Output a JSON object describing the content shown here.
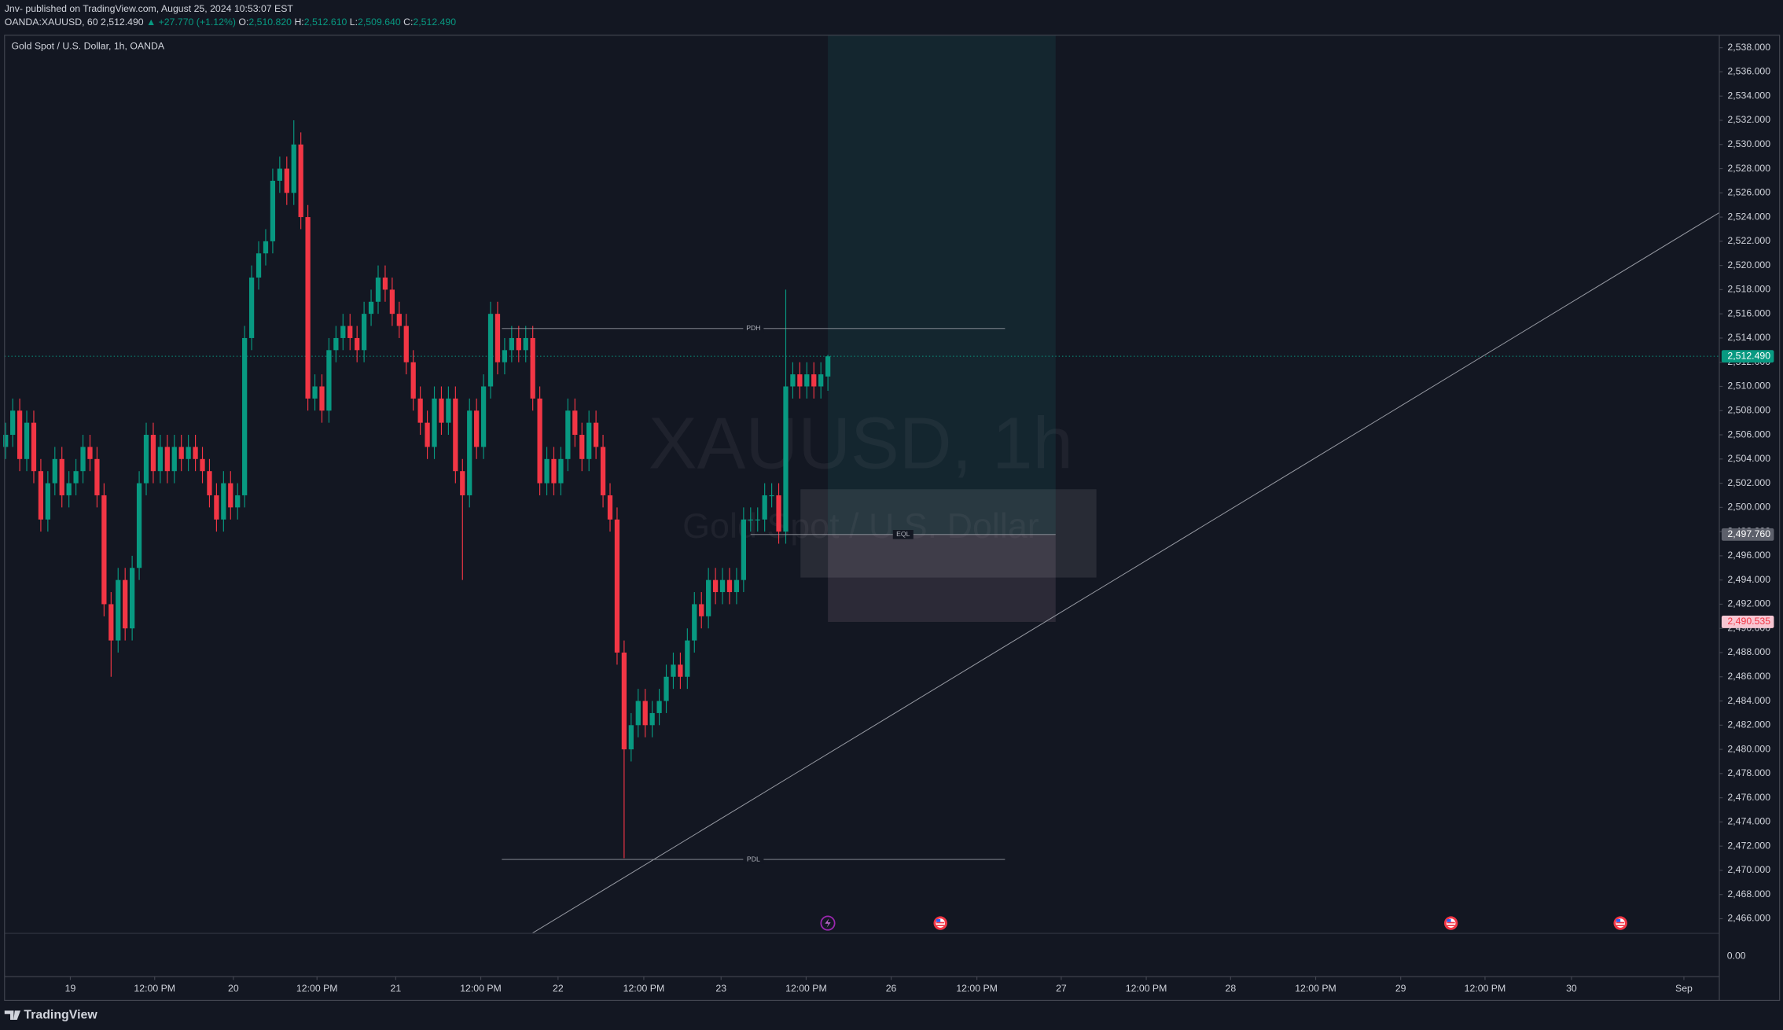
{
  "header": {
    "publisher": "Jnv- published on TradingView.com, August 25, 2024 10:53:07 EST",
    "symbol": "OANDA:XAUUSD, 60",
    "last": "2,512.490",
    "change": "▲ +27.770 (+1.12%)",
    "open_label": "O:",
    "open": "2,510.820",
    "high_label": "H:",
    "high": "2,512.610",
    "low_label": "L:",
    "low": "2,509.640",
    "close_label": "C:",
    "close": "2,512.490"
  },
  "chart_data": {
    "type": "candlestick",
    "title": "Gold Spot / U.S. Dollar, 1h, OANDA",
    "watermark": "XAUUSD, 1h",
    "watermark_subtitle": "Gold Spot / U.S. Dollar",
    "up_color": "#089981",
    "down_color": "#f23645",
    "grid": false,
    "open": [
      2505,
      2506,
      2508,
      2504,
      2507,
      2503,
      2499,
      2502,
      2504,
      2501,
      2502,
      2503,
      2505,
      2504,
      2501,
      2492,
      2489,
      2494,
      2490,
      2495,
      2502,
      2506,
      2503,
      2505,
      2503,
      2505,
      2504,
      2505,
      2504,
      2503,
      2501,
      2499,
      2502,
      2500,
      2501,
      2514,
      2519,
      2521,
      2522,
      2527,
      2528,
      2526,
      2530,
      2524,
      2509,
      2510,
      2508,
      2513,
      2514,
      2515,
      2514,
      2513,
      2516,
      2517,
      2519,
      2518,
      2516,
      2515,
      2512,
      2509,
      2507,
      2505,
      2509,
      2507,
      2509,
      2503,
      2501,
      2508,
      2505,
      2510,
      2516,
      2512,
      2513,
      2514,
      2513,
      2514,
      2509,
      2502,
      2504,
      2502,
      2504,
      2508,
      2506,
      2504,
      2507,
      2505,
      2501,
      2499,
      2488,
      2480,
      2482,
      2484,
      2482,
      2483,
      2484,
      2486,
      2487,
      2486,
      2489,
      2492,
      2491,
      2494,
      2493,
      2494,
      2493,
      2494,
      2499,
      2499,
      2499,
      2501,
      2501,
      2498,
      2510,
      2511,
      2510,
      2511,
      2510,
      2510.82
    ],
    "high": [
      2507,
      2509,
      2509,
      2508,
      2508,
      2504,
      2503,
      2505,
      2505,
      2503,
      2504,
      2506,
      2506,
      2505,
      2502,
      2493,
      2495,
      2495,
      2496,
      2503,
      2507,
      2507,
      2506,
      2506,
      2506,
      2506,
      2506,
      2506,
      2505,
      2504,
      2502,
      2503,
      2503,
      2502,
      2515,
      2520,
      2522,
      2523,
      2528,
      2529,
      2529,
      2532,
      2531,
      2525,
      2511,
      2511,
      2514,
      2515,
      2516,
      2516,
      2515,
      2517,
      2518,
      2520,
      2520,
      2519,
      2517,
      2516,
      2513,
      2510,
      2508,
      2510,
      2510,
      2510,
      2510,
      2504,
      2509,
      2509,
      2511,
      2517,
      2517,
      2514,
      2515,
      2515,
      2515,
      2515,
      2510,
      2505,
      2505,
      2505,
      2509,
      2509,
      2507,
      2508,
      2508,
      2506,
      2502,
      2500,
      2489,
      2483,
      2485,
      2485,
      2484,
      2485,
      2487,
      2488,
      2488,
      2490,
      2493,
      2493,
      2495,
      2495,
      2495,
      2495,
      2495,
      2500,
      2500,
      2500,
      2502,
      2502,
      2502,
      2518,
      2512,
      2512,
      2512,
      2512,
      2512,
      2512.61
    ],
    "low": [
      2504,
      2505,
      2503,
      2503,
      2502,
      2498,
      2498,
      2501,
      2500,
      2500,
      2501,
      2502,
      2503,
      2500,
      2491,
      2486,
      2488,
      2489,
      2489,
      2494,
      2501,
      2502,
      2502,
      2502,
      2502,
      2503,
      2503,
      2503,
      2502,
      2500,
      2498,
      2498,
      2499,
      2499,
      2500,
      2513,
      2518,
      2520,
      2521,
      2526,
      2525,
      2525,
      2523,
      2508,
      2508,
      2507,
      2507,
      2512,
      2513,
      2513,
      2512,
      2512,
      2515,
      2516,
      2517,
      2515,
      2514,
      2511,
      2508,
      2506,
      2504,
      2504,
      2506,
      2506,
      2502,
      2494,
      2500,
      2504,
      2504,
      2509,
      2511,
      2511,
      2512,
      2512,
      2512,
      2508,
      2501,
      2501,
      2501,
      2501,
      2503,
      2505,
      2503,
      2503,
      2504,
      2500,
      2498,
      2487,
      2471,
      2479,
      2481,
      2481,
      2481,
      2482,
      2483,
      2485,
      2485,
      2485,
      2488,
      2490,
      2490,
      2492,
      2492,
      2492,
      2492,
      2493,
      2498,
      2498,
      2498,
      2500,
      2497,
      2497,
      2509,
      2509,
      2509,
      2509,
      2509,
      2509.64
    ],
    "close": [
      2506,
      2508,
      2504,
      2507,
      2503,
      2499,
      2502,
      2504,
      2501,
      2502,
      2503,
      2505,
      2504,
      2501,
      2492,
      2489,
      2494,
      2490,
      2495,
      2502,
      2506,
      2503,
      2505,
      2503,
      2505,
      2504,
      2505,
      2504,
      2503,
      2501,
      2499,
      2502,
      2500,
      2501,
      2514,
      2519,
      2521,
      2522,
      2527,
      2528,
      2526,
      2530,
      2524,
      2509,
      2510,
      2508,
      2513,
      2514,
      2515,
      2514,
      2513,
      2516,
      2517,
      2519,
      2518,
      2516,
      2515,
      2512,
      2509,
      2507,
      2505,
      2509,
      2507,
      2509,
      2503,
      2501,
      2508,
      2505,
      2510,
      2516,
      2512,
      2513,
      2514,
      2513,
      2514,
      2509,
      2502,
      2504,
      2502,
      2504,
      2508,
      2506,
      2504,
      2507,
      2505,
      2501,
      2499,
      2488,
      2480,
      2482,
      2484,
      2482,
      2483,
      2484,
      2486,
      2487,
      2486,
      2489,
      2492,
      2491,
      2494,
      2493,
      2494,
      2493,
      2494,
      2499,
      2499,
      2499,
      2501,
      2501,
      2498,
      2510,
      2511,
      2510,
      2511,
      2510,
      2511,
      2512.49
    ],
    "xlim": [
      -0.16,
      243.84
    ],
    "xticks": [
      {
        "value": 9.2,
        "label": "19"
      },
      {
        "value": 21.2,
        "label": "12:00 PM"
      },
      {
        "value": 32.4,
        "label": "20"
      },
      {
        "value": 44.3,
        "label": "12:00 PM"
      },
      {
        "value": 55.5,
        "label": "21"
      },
      {
        "value": 67.6,
        "label": "12:00 PM"
      },
      {
        "value": 78.6,
        "label": "22"
      },
      {
        "value": 90.8,
        "label": "12:00 PM"
      },
      {
        "value": 101.8,
        "label": "23"
      },
      {
        "value": 113.9,
        "label": "12:00 PM"
      },
      {
        "value": 126,
        "label": "26"
      },
      {
        "value": 138.2,
        "label": "12:00 PM"
      },
      {
        "value": 150.2,
        "label": "27"
      },
      {
        "value": 162.3,
        "label": "12:00 PM"
      },
      {
        "value": 174.3,
        "label": "28"
      },
      {
        "value": 186.4,
        "label": "12:00 PM"
      },
      {
        "value": 198.5,
        "label": "29"
      },
      {
        "value": 210.5,
        "label": "12:00 PM"
      },
      {
        "value": 222.8,
        "label": "30"
      },
      {
        "value": 238.8,
        "label": "Sep"
      }
    ],
    "ylim": [
      2464.79,
      2539.03
    ],
    "yticks": [
      {
        "value": 2466,
        "label": "2,466.000"
      },
      {
        "value": 2468,
        "label": "2,468.000"
      },
      {
        "value": 2470,
        "label": "2,470.000"
      },
      {
        "value": 2472,
        "label": "2,472.000"
      },
      {
        "value": 2474,
        "label": "2,474.000"
      },
      {
        "value": 2476,
        "label": "2,476.000"
      },
      {
        "value": 2478,
        "label": "2,478.000"
      },
      {
        "value": 2480,
        "label": "2,480.000"
      },
      {
        "value": 2482,
        "label": "2,482.000"
      },
      {
        "value": 2484,
        "label": "2,484.000"
      },
      {
        "value": 2486,
        "label": "2,486.000"
      },
      {
        "value": 2488,
        "label": "2,488.000"
      },
      {
        "value": 2490,
        "label": "2,490.000"
      },
      {
        "value": 2492,
        "label": "2,492.000"
      },
      {
        "value": 2494,
        "label": "2,494.000"
      },
      {
        "value": 2496,
        "label": "2,496.000"
      },
      {
        "value": 2498,
        "label": "2,498.000"
      },
      {
        "value": 2500,
        "label": "2,500.000"
      },
      {
        "value": 2502,
        "label": "2,502.000"
      },
      {
        "value": 2504,
        "label": "2,504.000"
      },
      {
        "value": 2506,
        "label": "2,506.000"
      },
      {
        "value": 2508,
        "label": "2,508.000"
      },
      {
        "value": 2510,
        "label": "2,510.000"
      },
      {
        "value": 2512,
        "label": "2,512.000"
      },
      {
        "value": 2514,
        "label": "2,514.000"
      },
      {
        "value": 2516,
        "label": "2,516.000"
      },
      {
        "value": 2518,
        "label": "2,518.000"
      },
      {
        "value": 2520,
        "label": "2,520.000"
      },
      {
        "value": 2522,
        "label": "2,522.000"
      },
      {
        "value": 2524,
        "label": "2,524.000"
      },
      {
        "value": 2526,
        "label": "2,526.000"
      },
      {
        "value": 2528,
        "label": "2,528.000"
      },
      {
        "value": 2530,
        "label": "2,530.000"
      },
      {
        "value": 2532,
        "label": "2,532.000"
      },
      {
        "value": 2534,
        "label": "2,534.000"
      },
      {
        "value": 2536,
        "label": "2,536.000"
      },
      {
        "value": 2538,
        "label": "2,538.000"
      }
    ],
    "price_labels": [
      {
        "value": 2512.49,
        "label": "2,512.490",
        "color": "#089981"
      },
      {
        "value": 2497.76,
        "label": "2,497.760",
        "color": "#5d606b"
      },
      {
        "value": 2490.535,
        "label": "2,490.535",
        "color": "#f7c6d2"
      }
    ],
    "levels": [
      {
        "label": "PDH",
        "value": 2514.79,
        "x": [
          70.6,
          142.2
        ]
      },
      {
        "label": "EQL",
        "value": 2497.76,
        "x": [
          106,
          149.4
        ]
      },
      {
        "label": "PDL",
        "value": 2470.9,
        "x": [
          70.6,
          142.2
        ]
      }
    ],
    "position_x": [
      117,
      149.4
    ],
    "rectangle": {
      "x": [
        113.1,
        155.2
      ],
      "y": [
        2494.2,
        2501.5
      ]
    },
    "trendline": {
      "x": [
        74.9,
        243.84
      ],
      "y": [
        2464.79,
        2524.37
      ]
    },
    "lower_pane_tick": "0.00"
  },
  "footer": {
    "brand": "TradingView"
  }
}
